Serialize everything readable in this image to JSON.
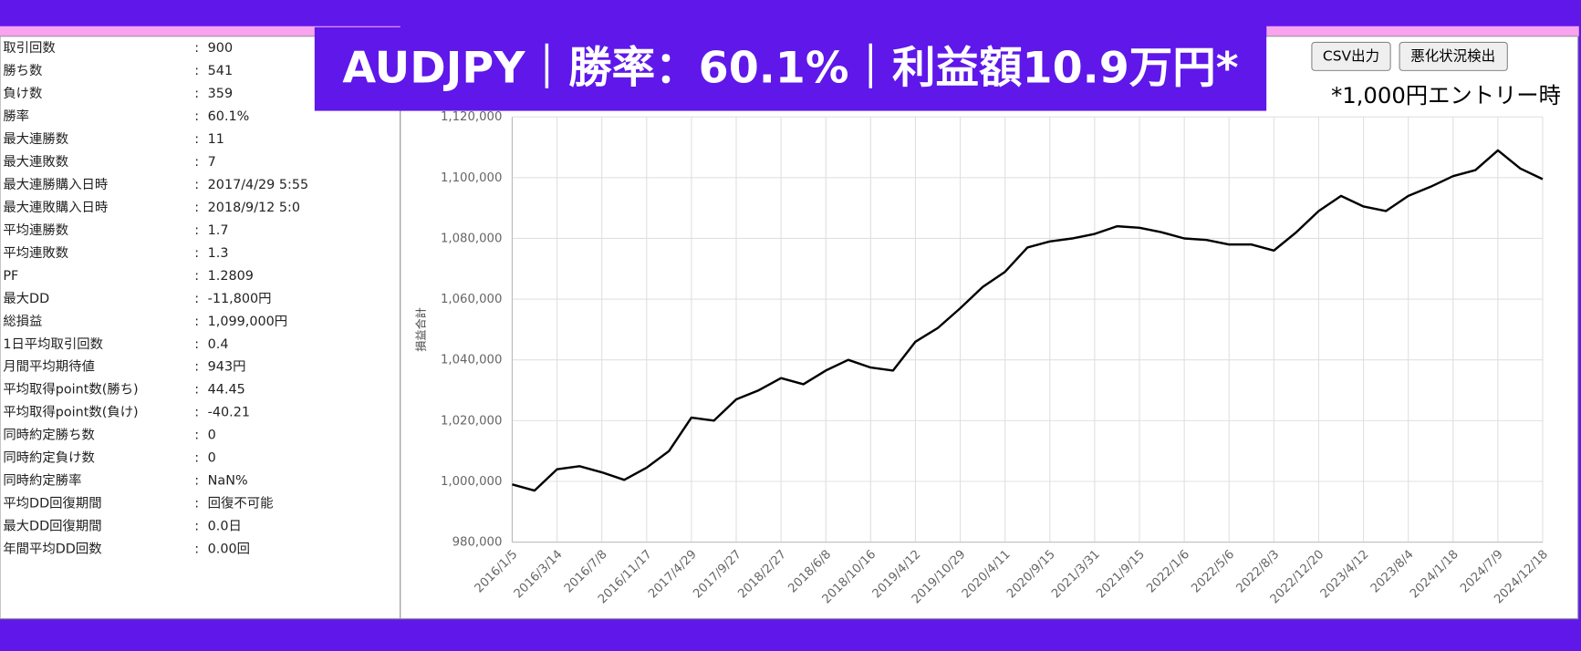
{
  "banner": "AUDJPY｜勝率：60.1%｜利益額10.9万円*",
  "buttons": [
    "CSV出力",
    "悪化状況検出"
  ],
  "note": "*1,000円エントリー時",
  "stats": {
    "separator": ":",
    "rows": [
      [
        "取引回数",
        "900"
      ],
      [
        "勝ち数",
        "541"
      ],
      [
        "負け数",
        "359"
      ],
      [
        "勝率",
        "60.1%"
      ],
      [
        "最大連勝数",
        "11"
      ],
      [
        "最大連敗数",
        "7"
      ],
      [
        "最大連勝購入日時",
        "2017/4/29 5:55"
      ],
      [
        "最大連敗購入日時",
        "2018/9/12 5:0"
      ],
      [
        "平均連勝数",
        "1.7"
      ],
      [
        "平均連敗数",
        "1.3"
      ],
      [
        "PF",
        "1.2809"
      ],
      [
        "最大DD",
        "-11,800円"
      ],
      [
        "総損益",
        "1,099,000円"
      ],
      [
        "1日平均取引回数",
        "0.4"
      ],
      [
        "月間平均期待値",
        "943円"
      ],
      [
        "平均取得point数(勝ち)",
        "44.45"
      ],
      [
        "平均取得point数(負け)",
        "-40.21"
      ],
      [
        "同時約定勝ち数",
        "0"
      ],
      [
        "同時約定負け数",
        "0"
      ],
      [
        "同時約定勝率",
        "NaN%"
      ],
      [
        "平均DD回復期間",
        "回復不可能"
      ],
      [
        "最大DD回復期間",
        "0.0日"
      ],
      [
        "年間平均DD回数",
        "0.00回"
      ]
    ]
  },
  "chart_data": {
    "type": "line",
    "y_label": "損益合計",
    "color": "#000000",
    "grid": true,
    "categories": [
      "2016/1/5",
      null,
      "2016/3/14",
      null,
      "2016/7/8",
      null,
      "2016/11/17",
      null,
      "2017/4/29",
      null,
      "2017/9/27",
      null,
      "2018/2/27",
      null,
      "2018/6/8",
      null,
      "2018/10/16",
      null,
      "2019/4/12",
      null,
      "2019/10/29",
      null,
      "2020/4/11",
      null,
      "2020/9/15",
      null,
      "2021/3/31",
      null,
      "2021/9/15",
      null,
      "2022/1/6",
      null,
      "2022/5/6",
      null,
      "2022/8/3",
      null,
      "2022/12/20",
      null,
      "2023/4/12",
      null,
      "2023/8/4",
      null,
      "2024/1/18",
      null,
      "2024/7/9",
      null,
      "2024/12/18"
    ],
    "values": [
      999000,
      997000,
      1004000,
      1005000,
      1003000,
      1000500,
      1004500,
      1010000,
      1021000,
      1020000,
      1027000,
      1030000,
      1034000,
      1032000,
      1036500,
      1040000,
      1037500,
      1036500,
      1046000,
      1050500,
      1057000,
      1064000,
      1069000,
      1077000,
      1079000,
      1080000,
      1081500,
      1084000,
      1083500,
      1082000,
      1080000,
      1079500,
      1078000,
      1078000,
      1076000,
      1082000,
      1089000,
      1094000,
      1090500,
      1089000,
      1094000,
      1097000,
      1100500,
      1102500,
      1109000,
      1103000,
      1099500
    ],
    "ylim": [
      980000,
      1120000
    ],
    "yticks": [
      {
        "value": 980000,
        "label": "980,000"
      },
      {
        "value": 1000000,
        "label": "1,000,000"
      },
      {
        "value": 1020000,
        "label": "1,020,000"
      },
      {
        "value": 1040000,
        "label": "1,040,000"
      },
      {
        "value": 1060000,
        "label": "1,060,000"
      },
      {
        "value": 1080000,
        "label": "1,080,000"
      },
      {
        "value": 1100000,
        "label": "1,100,000"
      },
      {
        "value": 1120000,
        "label": "1,120,000"
      }
    ]
  }
}
